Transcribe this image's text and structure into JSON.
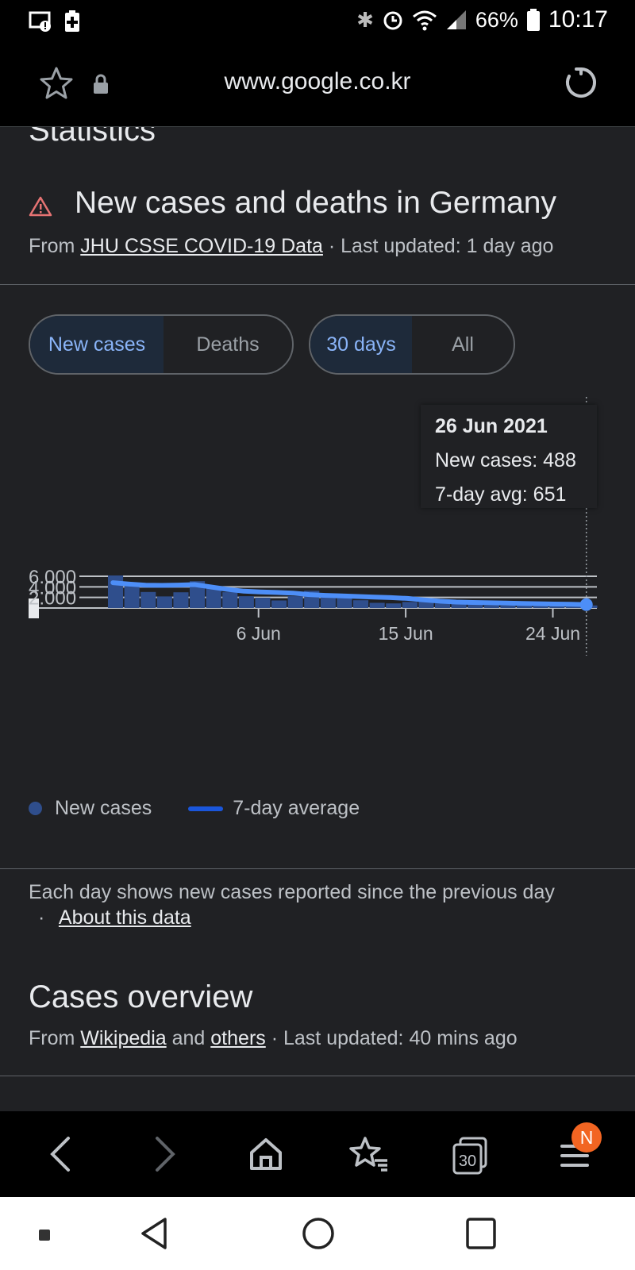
{
  "status_bar": {
    "battery_pct": "66%",
    "time": "10:17"
  },
  "url_bar": {
    "url": "www.google.co.kr"
  },
  "section": {
    "heading": "Statistics"
  },
  "card": {
    "title": "New cases and deaths in Germany",
    "source_prefix": "From",
    "source_link": "JHU CSSE COVID-19 Data",
    "source_suffix": "· Last updated: 1 day ago"
  },
  "toggles": {
    "metric": [
      {
        "label": "New cases",
        "selected": true
      },
      {
        "label": "Deaths",
        "selected": false
      }
    ],
    "range": [
      {
        "label": "30 days",
        "selected": true
      },
      {
        "label": "All",
        "selected": false
      }
    ]
  },
  "tooltip": {
    "date": "26 Jun 2021",
    "new_cases": "New cases: 488",
    "avg": "7-day avg: 651"
  },
  "chart_data": {
    "type": "bar",
    "title": "New cases and deaths in Germany",
    "x_ticks": [
      {
        "label": "6 Jun",
        "index": 9
      },
      {
        "label": "15 Jun",
        "index": 18
      },
      {
        "label": "24 Jun",
        "index": 27
      }
    ],
    "y_ticks": [
      "0",
      "2.000",
      "4.000",
      "6.000"
    ],
    "y_tick_values": [
      0,
      2000,
      4000,
      6000
    ],
    "ylim": [
      0,
      6000
    ],
    "series": [
      {
        "name": "New cases",
        "type": "bar",
        "color": "#2f4e8c",
        "values": [
          6150,
          4400,
          3030,
          2190,
          2970,
          5070,
          3690,
          2990,
          2230,
          1960,
          1430,
          2240,
          3260,
          2740,
          2180,
          1470,
          980,
          870,
          1150,
          1410,
          880,
          920,
          960,
          520,
          470,
          670,
          1120,
          460,
          650,
          488
        ]
      },
      {
        "name": "7-day average",
        "type": "line",
        "color": "#4d8ef7",
        "values": [
          4780,
          4520,
          4300,
          4280,
          4340,
          4420,
          3970,
          3520,
          3180,
          3040,
          2940,
          2820,
          2530,
          2380,
          2280,
          2180,
          2050,
          1970,
          1810,
          1550,
          1290,
          1120,
          1050,
          990,
          930,
          860,
          810,
          750,
          710,
          651
        ]
      }
    ],
    "highlight_index": 29
  },
  "legend": {
    "bars": "New cases",
    "line": "7-day average"
  },
  "note": {
    "text": "Each day shows new cases reported since the previous day",
    "sep": "·",
    "link": "About this data"
  },
  "overview": {
    "title": "Cases overview",
    "prefix": "From",
    "link1": "Wikipedia",
    "and": "and",
    "link2": "others",
    "suffix": "· Last updated: 40 mins ago"
  },
  "browser_nav": {
    "tabs_count": "30",
    "menu_badge": "N"
  }
}
